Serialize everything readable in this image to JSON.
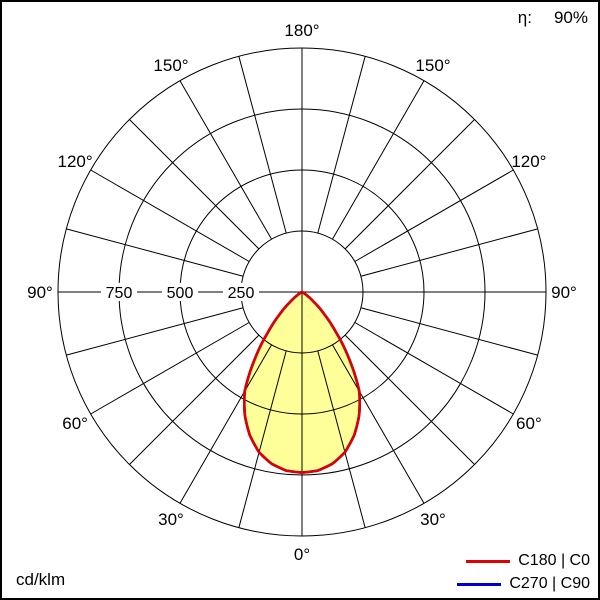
{
  "header": {
    "efficiency_label": "η:",
    "efficiency_value": "90%"
  },
  "footer": {
    "units_label": "cd/klm"
  },
  "chart_data": {
    "type": "line",
    "subtype": "polar-luminous-intensity-distribution",
    "units": "cd/klm",
    "efficiency_percent": 90,
    "angle_tick_labels": [
      "0°",
      "30°",
      "60°",
      "90°",
      "120°",
      "150°",
      "180°"
    ],
    "angle_tick_step_deg": 30,
    "spoke_step_deg": 15,
    "radial_tick_values": [
      250,
      500,
      750
    ],
    "grid_ring_values": [
      250,
      500,
      750,
      1000
    ],
    "r_max": 1000,
    "fill_color": "#ffff99",
    "grid_color": "#000000",
    "series": [
      {
        "name": "C180 | C0",
        "color": "#e00000",
        "gamma_start_deg": 0,
        "gamma_step_deg": 5,
        "values_cd_per_klm": [
          740,
          735,
          715,
          680,
          625,
          555,
          470,
          340,
          220,
          130,
          65,
          25,
          8,
          2,
          0,
          0,
          0,
          0,
          0,
          0,
          0,
          0,
          0,
          0,
          0,
          0,
          0,
          0,
          0,
          0,
          0,
          0,
          0,
          0,
          0,
          0,
          0
        ]
      },
      {
        "name": "C270 | C90",
        "color": "#0000cc",
        "gamma_start_deg": 0,
        "gamma_step_deg": 5,
        "values_cd_per_klm": [
          740,
          735,
          715,
          680,
          625,
          555,
          470,
          340,
          220,
          130,
          65,
          25,
          8,
          2,
          0,
          0,
          0,
          0,
          0,
          0,
          0,
          0,
          0,
          0,
          0,
          0,
          0,
          0,
          0,
          0,
          0,
          0,
          0,
          0,
          0,
          0,
          0
        ]
      }
    ]
  }
}
